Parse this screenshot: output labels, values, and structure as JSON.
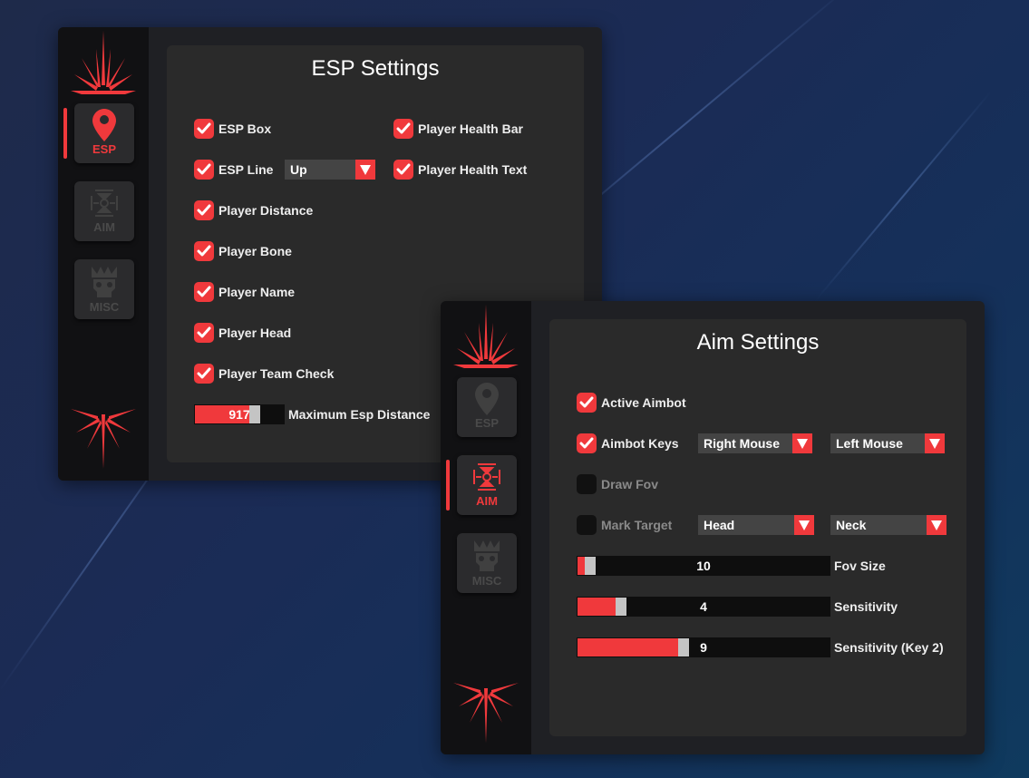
{
  "colors": {
    "accent": "#f0393c",
    "panel": "#2a2a2a",
    "sidebar": "#111113"
  },
  "esp_window": {
    "title": "ESP Settings",
    "tabs": [
      {
        "label": "ESP",
        "icon": "map-pin-icon",
        "active": true
      },
      {
        "label": "AIM",
        "icon": "crosshair-icon",
        "active": false
      },
      {
        "label": "MISC",
        "icon": "skull-crown-icon",
        "active": false
      }
    ],
    "left_options": [
      {
        "label": "ESP Box",
        "checked": true
      },
      {
        "label": "ESP Line",
        "checked": true
      },
      {
        "label": "Player Distance",
        "checked": true
      },
      {
        "label": "Player Bone",
        "checked": true
      },
      {
        "label": "Player Name",
        "checked": true
      },
      {
        "label": "Player Head",
        "checked": true
      },
      {
        "label": "Player Team Check",
        "checked": true
      }
    ],
    "esp_line_dropdown": "Up",
    "right_options": [
      {
        "label": "Player Health Bar",
        "checked": true
      },
      {
        "label": "Player Health Text",
        "checked": true
      }
    ],
    "distance_slider": {
      "label": "Maximum Esp Distance",
      "value": "917",
      "fill_percent": 61
    }
  },
  "aim_window": {
    "title": "Aim Settings",
    "tabs": [
      {
        "label": "ESP",
        "icon": "map-pin-icon",
        "active": false
      },
      {
        "label": "AIM",
        "icon": "crosshair-icon",
        "active": true
      },
      {
        "label": "MISC",
        "icon": "skull-crown-icon",
        "active": false
      }
    ],
    "options": [
      {
        "label": "Active Aimbot",
        "checked": true
      },
      {
        "label": "Aimbot Keys",
        "checked": true
      },
      {
        "label": "Draw Fov",
        "checked": false
      },
      {
        "label": "Mark Target",
        "checked": false
      }
    ],
    "aimbot_keys_dropdowns": [
      "Right Mouse",
      "Left Mouse"
    ],
    "mark_target_dropdowns": [
      "Head",
      "Neck"
    ],
    "sliders": [
      {
        "label": "Fov Size",
        "value": "10",
        "fill_percent": 3
      },
      {
        "label": "Sensitivity",
        "value": "4",
        "fill_percent": 15
      },
      {
        "label": "Sensitivity (Key 2)",
        "value": "9",
        "fill_percent": 40
      }
    ]
  }
}
